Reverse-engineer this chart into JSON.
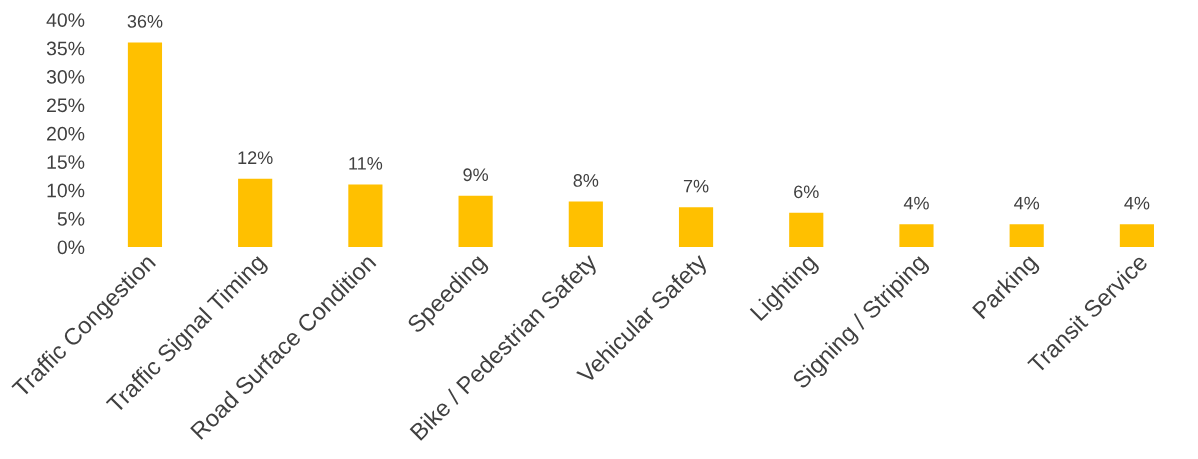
{
  "chart_data": {
    "type": "bar",
    "categories": [
      "Traffic Congestion",
      "Traffic Signal Timing",
      "Road Surface Condition",
      "Speeding",
      "Bike / Pedestrian Safety",
      "Vehicular Safety",
      "Lighting",
      "Signing / Striping",
      "Parking",
      "Transit Service"
    ],
    "values": [
      36,
      12,
      11,
      9,
      8,
      7,
      6,
      4,
      4,
      4
    ],
    "value_labels": [
      "36%",
      "12%",
      "11%",
      "9%",
      "8%",
      "7%",
      "6%",
      "4%",
      "4%",
      "4%"
    ],
    "color": "#ffc000",
    "ylim": [
      0,
      40
    ],
    "yticks": [
      {
        "value": 0,
        "label": "0%"
      },
      {
        "value": 5,
        "label": "5%"
      },
      {
        "value": 10,
        "label": "10%"
      },
      {
        "value": 15,
        "label": "15%"
      },
      {
        "value": 20,
        "label": "20%"
      },
      {
        "value": 25,
        "label": "25%"
      },
      {
        "value": 30,
        "label": "30%"
      },
      {
        "value": 35,
        "label": "35%"
      },
      {
        "value": 40,
        "label": "40%"
      }
    ],
    "grid": false,
    "legend": false
  }
}
